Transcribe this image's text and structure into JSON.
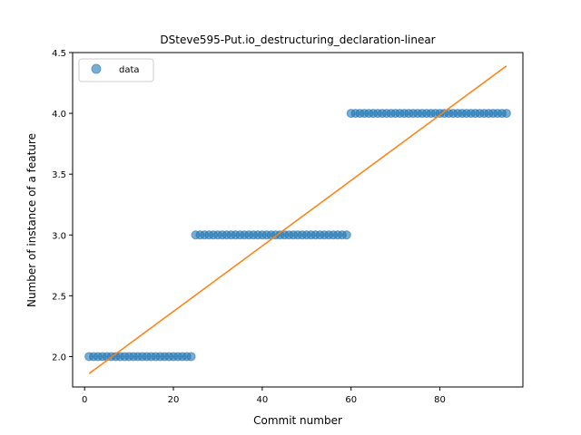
{
  "chart_data": {
    "type": "scatter",
    "title": "DSteve595-Put.io_destructuring_declaration-linear",
    "xlabel": "Commit number",
    "ylabel": "Number of instance of a feature",
    "xlim": [
      -2.7,
      98.7
    ],
    "ylim": [
      1.75,
      4.5
    ],
    "xticks": [
      0,
      20,
      40,
      60,
      80
    ],
    "yticks": [
      2.0,
      2.5,
      3.0,
      3.5,
      4.0,
      4.5
    ],
    "xtick_labels": [
      "0",
      "20",
      "40",
      "60",
      "80"
    ],
    "ytick_labels": [
      "2.0",
      "2.5",
      "3.0",
      "3.5",
      "4.0",
      "4.5"
    ],
    "grid": false,
    "legend_position": "top-left",
    "series": [
      {
        "name": "data",
        "kind": "scatter",
        "color": "#1f77b4",
        "segments": [
          {
            "x_start": 1,
            "x_end": 24,
            "y": 2.0
          },
          {
            "x_start": 25,
            "x_end": 59,
            "y": 3.0
          },
          {
            "x_start": 60,
            "x_end": 95,
            "y": 4.0
          }
        ]
      },
      {
        "kind": "line",
        "color": "#ff7f0e",
        "x": [
          1,
          95
        ],
        "y": [
          1.86,
          4.39
        ]
      }
    ]
  }
}
